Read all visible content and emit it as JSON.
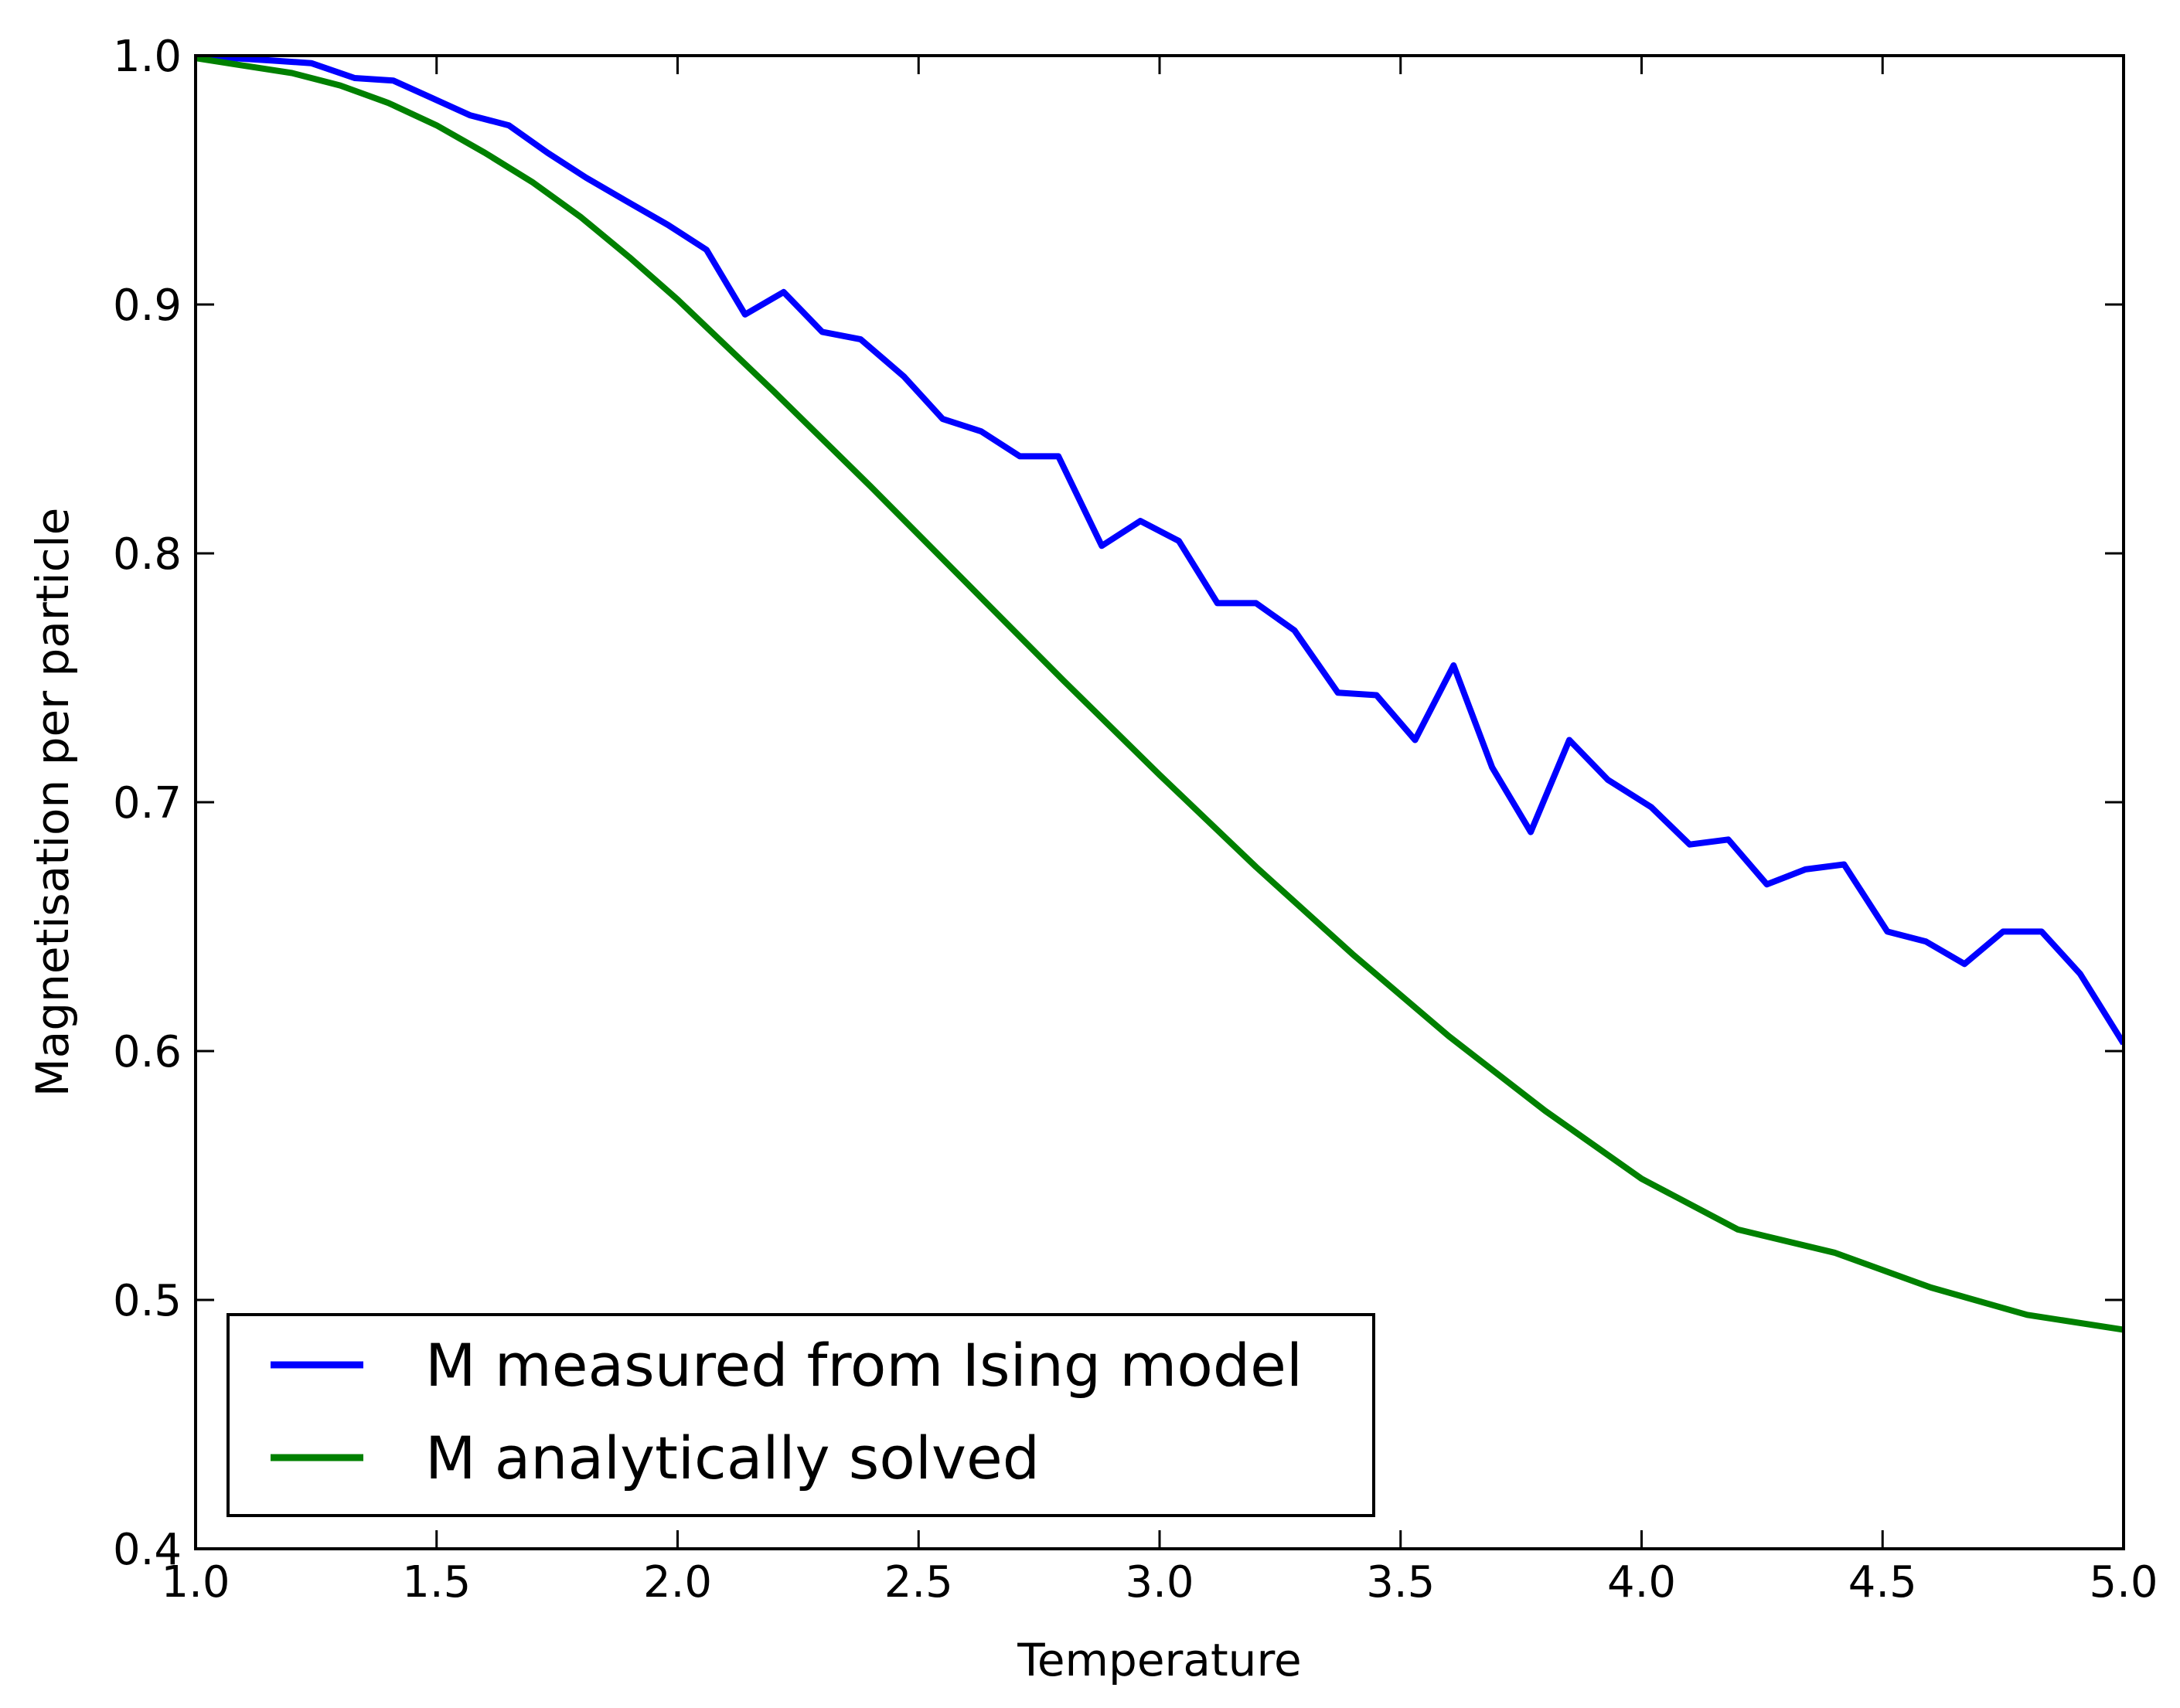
{
  "chart_data": {
    "type": "line",
    "title": "",
    "xlabel": "Temperature",
    "ylabel": "Magnetisation per particle",
    "xlim": [
      1.0,
      5.0
    ],
    "ylim": [
      0.4,
      1.0
    ],
    "xticks": [
      "1.0",
      "1.5",
      "2.0",
      "2.5",
      "3.0",
      "3.5",
      "4.0",
      "4.5",
      "5.0"
    ],
    "yticks": [
      "0.4",
      "0.5",
      "0.6",
      "0.7",
      "0.8",
      "0.9",
      "1.0"
    ],
    "grid": false,
    "legend_position": "lower-left",
    "series": [
      {
        "name": "M measured from Ising model",
        "color": "#0000ff",
        "x": [
          1.0,
          1.08,
          1.16,
          1.24,
          1.33,
          1.41,
          1.49,
          1.57,
          1.65,
          1.73,
          1.81,
          1.89,
          1.98,
          2.06,
          2.14,
          2.22,
          2.3,
          2.38,
          2.47,
          2.55,
          2.63,
          2.71,
          2.79,
          2.88,
          2.96,
          3.04,
          3.12,
          3.2,
          3.28,
          3.37,
          3.45,
          3.53,
          3.61,
          3.69,
          3.77,
          3.85,
          3.93,
          4.02,
          4.1,
          4.18,
          4.26,
          4.34,
          4.42,
          4.51,
          4.59,
          4.67,
          4.75,
          4.83,
          4.91,
          5.0
        ],
        "y": [
          0.999,
          0.999,
          0.998,
          0.997,
          0.991,
          0.99,
          0.983,
          0.976,
          0.972,
          0.961,
          0.951,
          0.942,
          0.932,
          0.922,
          0.896,
          0.905,
          0.889,
          0.886,
          0.871,
          0.854,
          0.849,
          0.839,
          0.839,
          0.803,
          0.813,
          0.805,
          0.78,
          0.78,
          0.769,
          0.744,
          0.743,
          0.725,
          0.755,
          0.714,
          0.688,
          0.725,
          0.709,
          0.698,
          0.683,
          0.685,
          0.667,
          0.673,
          0.675,
          0.648,
          0.644,
          0.635,
          0.648,
          0.648,
          0.631,
          0.603
        ]
      },
      {
        "name": "M analytically solved",
        "color": "#008000",
        "x": [
          1.0,
          1.1,
          1.2,
          1.3,
          1.4,
          1.5,
          1.6,
          1.7,
          1.8,
          1.9,
          2.0,
          2.2,
          2.4,
          2.6,
          2.8,
          3.0,
          3.2,
          3.4,
          3.6,
          3.8,
          4.0,
          4.2,
          4.4,
          4.6,
          4.8,
          5.0
        ],
        "y": [
          0.999,
          0.996,
          0.993,
          0.988,
          0.981,
          0.972,
          0.961,
          0.949,
          0.935,
          0.919,
          0.902,
          0.865,
          0.827,
          0.788,
          0.749,
          0.711,
          0.674,
          0.639,
          0.606,
          0.576,
          0.5487,
          0.5283,
          0.519,
          0.505,
          0.494,
          0.488
        ]
      }
    ]
  }
}
